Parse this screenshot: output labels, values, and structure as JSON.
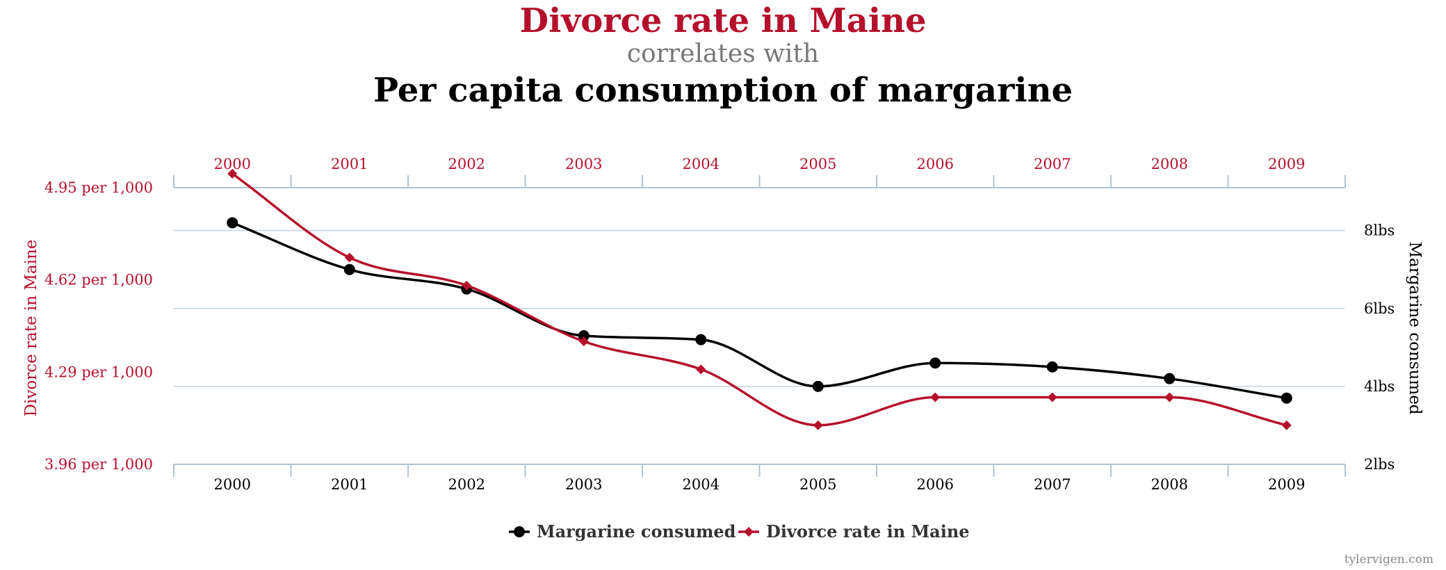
{
  "chart_data": {
    "type": "line",
    "title": "Divorce rate in Maine",
    "subtitle": "correlates with",
    "title2": "Per capita consumption of margarine",
    "x": [
      "2000",
      "2001",
      "2002",
      "2003",
      "2004",
      "2005",
      "2006",
      "2007",
      "2008",
      "2009"
    ],
    "left_axis": {
      "label": "Divorce rate in Maine",
      "ticks": [
        "3.96 per 1,000",
        "4.29 per 1,000",
        "4.62 per 1,000",
        "4.95 per 1,000"
      ],
      "tick_values": [
        3.96,
        4.29,
        4.62,
        4.95
      ],
      "range": [
        3.96,
        4.95
      ]
    },
    "right_axis": {
      "label": "Margarine consumed",
      "ticks": [
        "2lbs",
        "4lbs",
        "6lbs",
        "8lbs"
      ],
      "tick_values": [
        2,
        4,
        6,
        8
      ],
      "range": [
        2,
        9.1
      ]
    },
    "series": [
      {
        "name": "Margarine consumed",
        "axis": "right",
        "color": "#000000",
        "marker": "circle",
        "values": [
          8.2,
          7.0,
          6.5,
          5.3,
          5.2,
          4.0,
          4.6,
          4.5,
          4.2,
          3.7
        ]
      },
      {
        "name": "Divorce rate in Maine",
        "axis": "left",
        "color": "#b5102b",
        "marker": "diamond",
        "values": [
          5.0,
          4.7,
          4.6,
          4.4,
          4.3,
          4.1,
          4.2,
          4.2,
          4.2,
          4.1
        ]
      }
    ],
    "legend_position": "bottom-center",
    "grid": true
  },
  "colors": {
    "title_red": "#b5102b",
    "subtitle_gray": "#777777",
    "grid": "#c5d2de",
    "axis": "#b0c4d4"
  },
  "credit": "tylervigen.com"
}
